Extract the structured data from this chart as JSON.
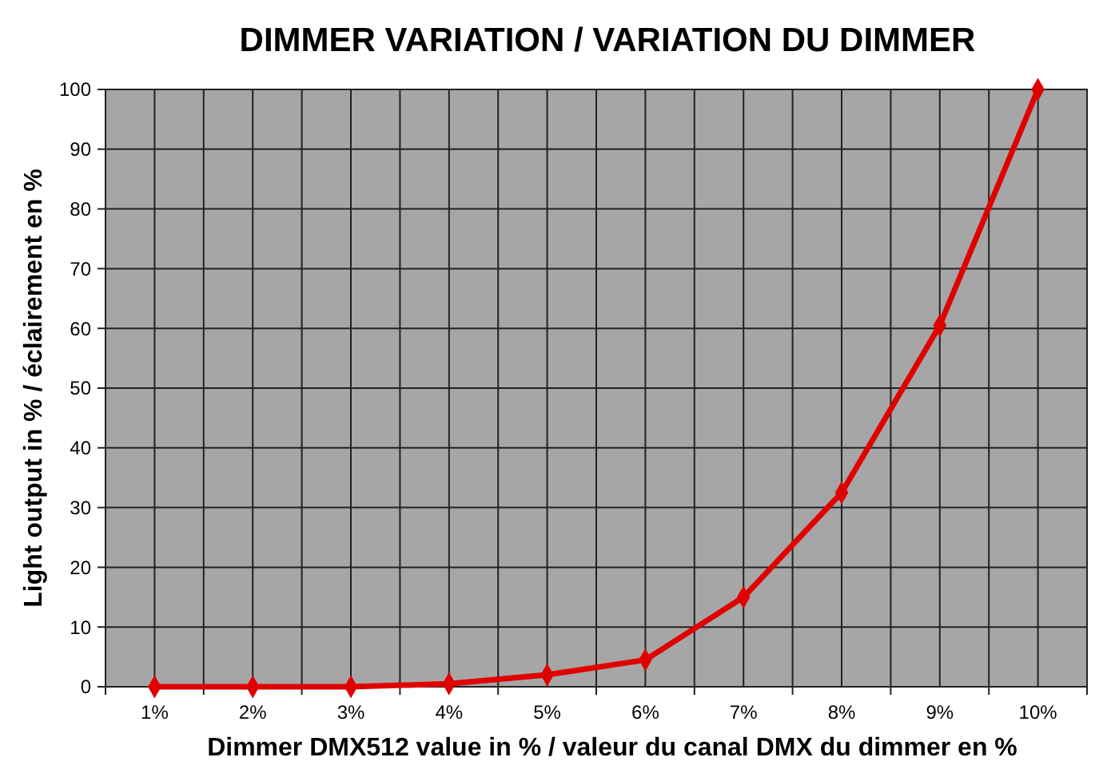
{
  "chart_data": {
    "type": "line",
    "title": "DIMMER VARIATION / VARIATION DU DIMMER",
    "xlabel": "Dimmer DMX512 value in % / valeur du canal DMX du dimmer en %",
    "ylabel": "Light output in % / éclairement en %",
    "categories": [
      "1%",
      "2%",
      "3%",
      "4%",
      "5%",
      "6%",
      "7%",
      "8%",
      "9%",
      "10%"
    ],
    "series": [
      {
        "color": "#e00000",
        "values": [
          0,
          0,
          0,
          0.5,
          2,
          4.5,
          15,
          32.5,
          60.5,
          100
        ]
      }
    ],
    "ylim": [
      0,
      100
    ],
    "yticks": [
      0,
      10,
      20,
      30,
      40,
      50,
      60,
      70,
      80,
      90,
      100
    ],
    "grid": true,
    "marker": "diamond",
    "line_style": "solid"
  }
}
